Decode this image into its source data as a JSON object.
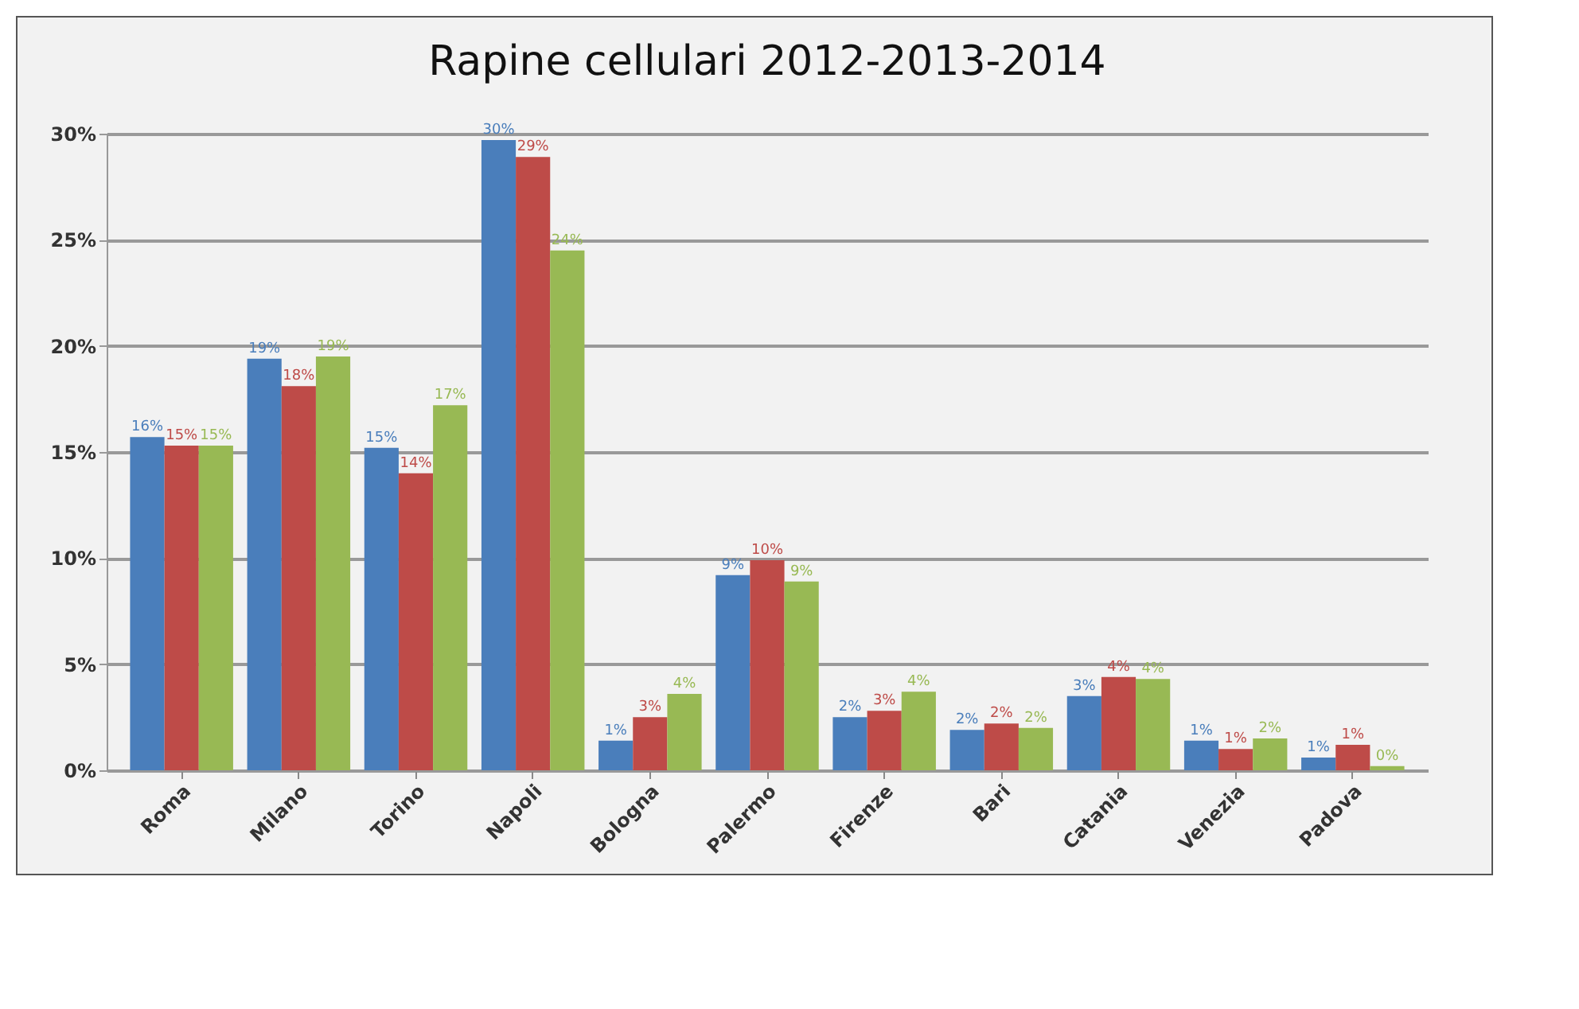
{
  "chart_data": {
    "type": "bar",
    "title": "Rapine cellulari 2012-2013-2014",
    "categories": [
      "Roma",
      "Milano",
      "Torino",
      "Napoli",
      "Bologna",
      "Palermo",
      "Firenze",
      "Bari",
      "Catania",
      "Venezia",
      "Padova"
    ],
    "series": [
      {
        "color": "#4a7ebb",
        "values": [
          15.7,
          19.4,
          15.2,
          29.7,
          1.4,
          9.2,
          2.5,
          1.9,
          3.5,
          1.4,
          0.6
        ],
        "value_labels": [
          "16%",
          "19%",
          "15%",
          "30%",
          "1%",
          "9%",
          "2%",
          "2%",
          "3%",
          "1%",
          "1%"
        ]
      },
      {
        "color": "#be4b48",
        "values": [
          15.3,
          18.1,
          14.0,
          28.9,
          2.5,
          9.9,
          2.8,
          2.2,
          4.4,
          1.0,
          1.2
        ],
        "value_labels": [
          "15%",
          "18%",
          "14%",
          "29%",
          "3%",
          "10%",
          "3%",
          "2%",
          "4%",
          "1%",
          "1%"
        ]
      },
      {
        "color": "#98b954",
        "values": [
          15.3,
          19.5,
          17.2,
          24.5,
          3.6,
          8.9,
          3.7,
          2.0,
          4.3,
          1.5,
          0.2
        ],
        "value_labels": [
          "15%",
          "19%",
          "17%",
          "24%",
          "4%",
          "9%",
          "4%",
          "2%",
          "4%",
          "2%",
          "0%"
        ]
      }
    ],
    "ylim": [
      0,
      30
    ],
    "yticks": [
      {
        "value": 0,
        "label": "0%"
      },
      {
        "value": 5,
        "label": "5%"
      },
      {
        "value": 10,
        "label": "10%"
      },
      {
        "value": 15,
        "label": "15%"
      },
      {
        "value": 20,
        "label": "20%"
      },
      {
        "value": 25,
        "label": "25%"
      },
      {
        "value": 30,
        "label": "30%"
      }
    ],
    "grid": "y",
    "legend": false
  }
}
